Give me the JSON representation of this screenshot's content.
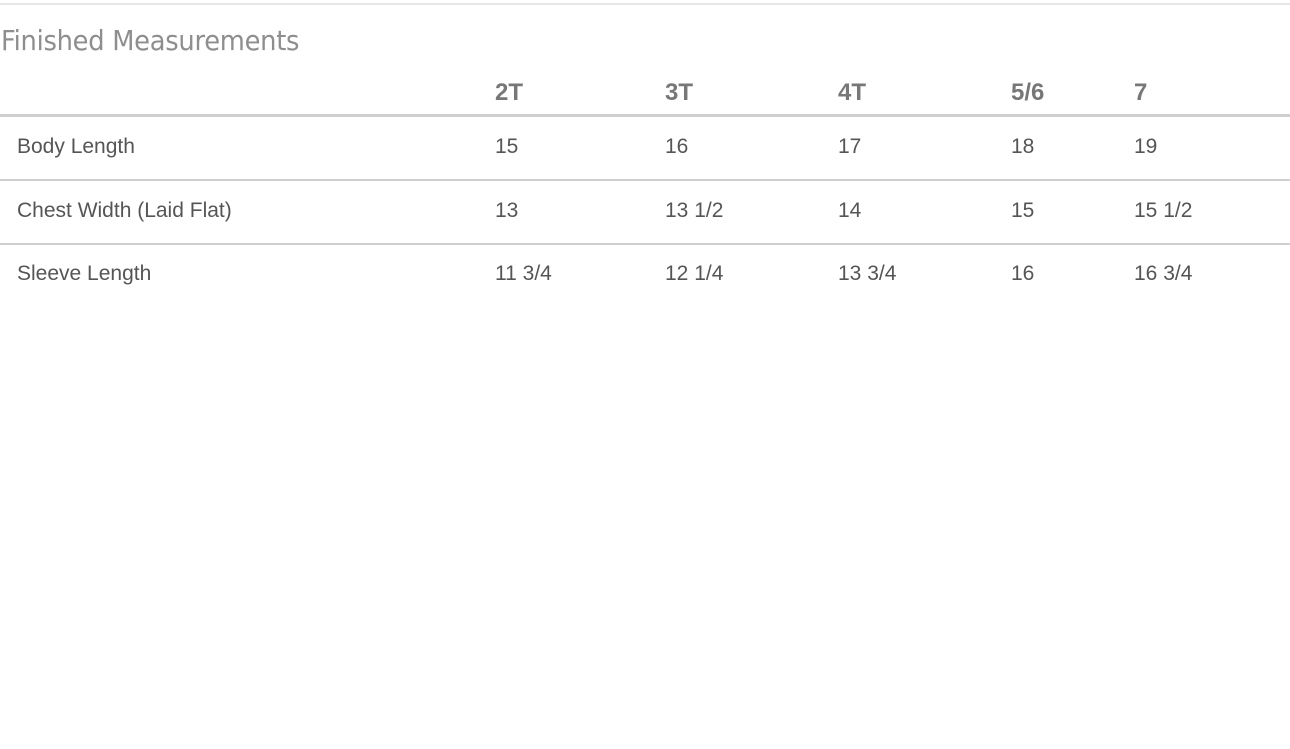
{
  "title": "Finished Measurements",
  "table": {
    "columns": [
      "",
      "2T",
      "3T",
      "4T",
      "5/6",
      "7"
    ],
    "rows": [
      {
        "label": "Body Length",
        "values": [
          "15",
          "16",
          "17",
          "18",
          "19"
        ]
      },
      {
        "label": "Chest Width (Laid Flat)",
        "values": [
          "13",
          "13 1/2",
          "14",
          "15",
          "15 1/2"
        ]
      },
      {
        "label": "Sleeve Length",
        "values": [
          "11 3/4",
          "12 1/4",
          "13 3/4",
          "16",
          "16 3/4"
        ]
      }
    ]
  }
}
